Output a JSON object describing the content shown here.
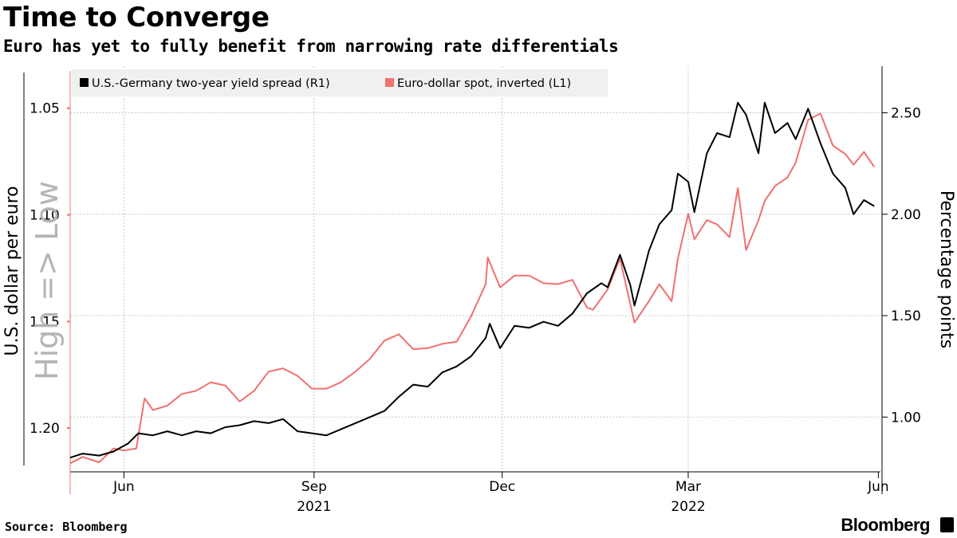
{
  "title": "Time to Converge",
  "subtitle": "Euro has yet to fully benefit from narrowing rate differentials",
  "source": "Source: Bloomberg",
  "brand": "Bloomberg",
  "chart_data": {
    "type": "line",
    "legend_position": "top-left",
    "grid": true,
    "colors": {
      "spread": "#000000",
      "euro": "#f07070",
      "axis_left": "#f07070",
      "grid": "#c8c8c8",
      "low_high": "#b4b4b4"
    },
    "left_axis": {
      "label": "U.S. dollar per euro",
      "inverted": true,
      "range": [
        1.2205,
        1.0303
      ],
      "ticks": [
        "1.05",
        "1.10",
        "1.15",
        "1.20"
      ],
      "overlay_label": "High => Low"
    },
    "right_axis": {
      "label": "Percentage points",
      "range": [
        0.73,
        2.73
      ],
      "ticks": [
        "1.00",
        "1.50",
        "2.00",
        "2.50"
      ]
    },
    "x_axis": {
      "range": [
        "2021-05-06",
        "2022-06-02"
      ],
      "ticks": [
        {
          "label": "Jun",
          "date": "2021-06-01"
        },
        {
          "label": "Sep",
          "date": "2021-09-01"
        },
        {
          "label": "Dec",
          "date": "2021-12-01"
        },
        {
          "label": "Mar",
          "date": "2022-03-01"
        },
        {
          "label": "Jun",
          "date": "2022-06-01"
        }
      ],
      "year_labels": [
        {
          "label": "2021",
          "date": "2021-09-01"
        },
        {
          "label": "2022",
          "date": "2022-03-01"
        }
      ]
    },
    "series": [
      {
        "name": "U.S.-Germany two-year yield spread (R1)",
        "axis": "right",
        "points": [
          [
            "2021-05-06",
            0.8
          ],
          [
            "2021-05-12",
            0.82
          ],
          [
            "2021-05-20",
            0.81
          ],
          [
            "2021-05-27",
            0.83
          ],
          [
            "2021-06-03",
            0.87
          ],
          [
            "2021-06-08",
            0.92
          ],
          [
            "2021-06-15",
            0.91
          ],
          [
            "2021-06-22",
            0.93
          ],
          [
            "2021-06-29",
            0.91
          ],
          [
            "2021-07-06",
            0.93
          ],
          [
            "2021-07-13",
            0.92
          ],
          [
            "2021-07-20",
            0.95
          ],
          [
            "2021-07-27",
            0.96
          ],
          [
            "2021-08-03",
            0.98
          ],
          [
            "2021-08-10",
            0.97
          ],
          [
            "2021-08-17",
            0.99
          ],
          [
            "2021-08-24",
            0.93
          ],
          [
            "2021-08-31",
            0.92
          ],
          [
            "2021-09-07",
            0.91
          ],
          [
            "2021-09-14",
            0.94
          ],
          [
            "2021-09-21",
            0.97
          ],
          [
            "2021-09-28",
            1.0
          ],
          [
            "2021-10-05",
            1.03
          ],
          [
            "2021-10-12",
            1.1
          ],
          [
            "2021-10-19",
            1.16
          ],
          [
            "2021-10-26",
            1.15
          ],
          [
            "2021-11-02",
            1.22
          ],
          [
            "2021-11-09",
            1.25
          ],
          [
            "2021-11-16",
            1.3
          ],
          [
            "2021-11-23",
            1.39
          ],
          [
            "2021-11-25",
            1.46
          ],
          [
            "2021-11-30",
            1.34
          ],
          [
            "2021-12-07",
            1.45
          ],
          [
            "2021-12-14",
            1.44
          ],
          [
            "2021-12-21",
            1.47
          ],
          [
            "2021-12-28",
            1.45
          ],
          [
            "2022-01-04",
            1.51
          ],
          [
            "2022-01-11",
            1.61
          ],
          [
            "2022-01-18",
            1.66
          ],
          [
            "2022-01-21",
            1.64
          ],
          [
            "2022-01-27",
            1.8
          ],
          [
            "2022-02-01",
            1.65
          ],
          [
            "2022-02-03",
            1.55
          ],
          [
            "2022-02-07",
            1.7
          ],
          [
            "2022-02-10",
            1.82
          ],
          [
            "2022-02-15",
            1.95
          ],
          [
            "2022-02-21",
            2.02
          ],
          [
            "2022-02-24",
            2.2
          ],
          [
            "2022-03-01",
            2.16
          ],
          [
            "2022-03-04",
            2.01
          ],
          [
            "2022-03-10",
            2.3
          ],
          [
            "2022-03-15",
            2.4
          ],
          [
            "2022-03-21",
            2.38
          ],
          [
            "2022-03-25",
            2.55
          ],
          [
            "2022-03-29",
            2.49
          ],
          [
            "2022-04-04",
            2.3
          ],
          [
            "2022-04-07",
            2.55
          ],
          [
            "2022-04-12",
            2.4
          ],
          [
            "2022-04-18",
            2.45
          ],
          [
            "2022-04-22",
            2.37
          ],
          [
            "2022-04-28",
            2.52
          ],
          [
            "2022-05-04",
            2.35
          ],
          [
            "2022-05-10",
            2.2
          ],
          [
            "2022-05-16",
            2.13
          ],
          [
            "2022-05-20",
            2.0
          ],
          [
            "2022-05-25",
            2.07
          ],
          [
            "2022-05-30",
            2.04
          ]
        ]
      },
      {
        "name": "Euro-dollar spot, inverted (L1)",
        "axis": "left",
        "points": [
          [
            "2021-05-06",
            1.2165
          ],
          [
            "2021-05-12",
            1.2135
          ],
          [
            "2021-05-20",
            1.216
          ],
          [
            "2021-05-27",
            1.2095
          ],
          [
            "2021-06-01",
            1.2105
          ],
          [
            "2021-06-07",
            1.2095
          ],
          [
            "2021-06-11",
            1.186
          ],
          [
            "2021-06-15",
            1.1915
          ],
          [
            "2021-06-22",
            1.1895
          ],
          [
            "2021-06-29",
            1.184
          ],
          [
            "2021-07-06",
            1.1825
          ],
          [
            "2021-07-13",
            1.1785
          ],
          [
            "2021-07-20",
            1.18
          ],
          [
            "2021-07-27",
            1.1875
          ],
          [
            "2021-08-03",
            1.1825
          ],
          [
            "2021-08-10",
            1.1735
          ],
          [
            "2021-08-17",
            1.172
          ],
          [
            "2021-08-24",
            1.1755
          ],
          [
            "2021-08-31",
            1.1815
          ],
          [
            "2021-09-07",
            1.1815
          ],
          [
            "2021-09-14",
            1.1785
          ],
          [
            "2021-09-21",
            1.1735
          ],
          [
            "2021-09-28",
            1.1675
          ],
          [
            "2021-10-05",
            1.159
          ],
          [
            "2021-10-12",
            1.156
          ],
          [
            "2021-10-19",
            1.163
          ],
          [
            "2021-10-26",
            1.1625
          ],
          [
            "2021-11-02",
            1.1605
          ],
          [
            "2021-11-09",
            1.1595
          ],
          [
            "2021-11-16",
            1.1475
          ],
          [
            "2021-11-23",
            1.1325
          ],
          [
            "2021-11-24",
            1.12
          ],
          [
            "2021-11-30",
            1.134
          ],
          [
            "2021-12-07",
            1.1285
          ],
          [
            "2021-12-14",
            1.1285
          ],
          [
            "2021-12-21",
            1.132
          ],
          [
            "2021-12-28",
            1.1325
          ],
          [
            "2022-01-04",
            1.1305
          ],
          [
            "2022-01-11",
            1.1435
          ],
          [
            "2022-01-14",
            1.1445
          ],
          [
            "2022-01-21",
            1.135
          ],
          [
            "2022-01-27",
            1.1205
          ],
          [
            "2022-02-03",
            1.1505
          ],
          [
            "2022-02-10",
            1.1405
          ],
          [
            "2022-02-15",
            1.1325
          ],
          [
            "2022-02-21",
            1.1405
          ],
          [
            "2022-02-24",
            1.1205
          ],
          [
            "2022-03-01",
            1.0995
          ],
          [
            "2022-03-04",
            1.1115
          ],
          [
            "2022-03-10",
            1.1025
          ],
          [
            "2022-03-15",
            1.1045
          ],
          [
            "2022-03-21",
            1.1105
          ],
          [
            "2022-03-25",
            1.0875
          ],
          [
            "2022-03-29",
            1.1165
          ],
          [
            "2022-04-04",
            1.1025
          ],
          [
            "2022-04-07",
            1.0935
          ],
          [
            "2022-04-12",
            1.0865
          ],
          [
            "2022-04-18",
            1.0825
          ],
          [
            "2022-04-22",
            1.0755
          ],
          [
            "2022-04-28",
            1.0555
          ],
          [
            "2022-05-04",
            1.0525
          ],
          [
            "2022-05-10",
            1.0675
          ],
          [
            "2022-05-16",
            1.0715
          ],
          [
            "2022-05-20",
            1.0765
          ],
          [
            "2022-05-25",
            1.0705
          ],
          [
            "2022-05-30",
            1.0775
          ]
        ]
      }
    ]
  }
}
